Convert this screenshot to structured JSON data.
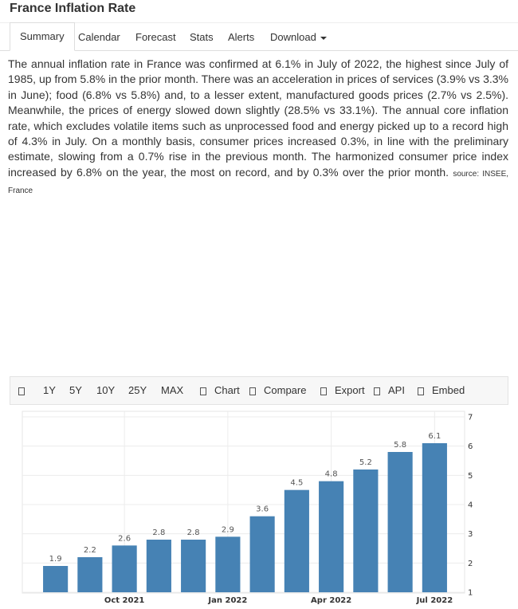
{
  "header": {
    "title": "France Inflation Rate"
  },
  "tabs": [
    "Summary",
    "Calendar",
    "Forecast",
    "Stats",
    "Alerts",
    "Download"
  ],
  "summary": {
    "text": "The annual inflation rate in France was confirmed at 6.1% in July of 2022, the highest since July of 1985, up from 5.8% in the prior month. There was an acceleration in prices of services (3.9% vs 3.3% in June); food (6.8% vs 5.8%) and, to a lesser extent, manufactured goods prices (2.7% vs 2.5%). Meanwhile, the prices of energy slowed down slightly (28.5% vs 33.1%). The annual core inflation rate, which excludes volatile items such as unprocessed food and energy picked up to a record high of 4.3% in July. On a monthly basis, consumer prices increased 0.3%, in line with the preliminary estimate, slowing from a 0.7% rise in the previous month. The harmonized consumer price index increased by 6.8% on the year, the most on record, and by 0.3% over the prior month.",
    "source": "source: INSEE, France"
  },
  "toolbar": {
    "ranges": [
      "1Y",
      "5Y",
      "10Y",
      "25Y",
      "MAX"
    ],
    "actions": [
      "Chart",
      "Compare",
      "Export",
      "API",
      "Embed"
    ]
  },
  "chart_data": {
    "type": "bar",
    "categories": [
      null,
      null,
      "Oct 2021",
      null,
      null,
      "Jan 2022",
      null,
      null,
      "Apr 2022",
      null,
      null,
      "Jul 2022"
    ],
    "values": [
      1.9,
      2.2,
      2.6,
      2.8,
      2.8,
      2.9,
      3.6,
      4.5,
      4.8,
      5.2,
      5.8,
      6.1
    ],
    "color": "#4682b4",
    "ylim": [
      1,
      7
    ],
    "yticks": [
      1,
      2,
      3,
      4,
      5,
      6,
      7
    ],
    "grid": true
  }
}
